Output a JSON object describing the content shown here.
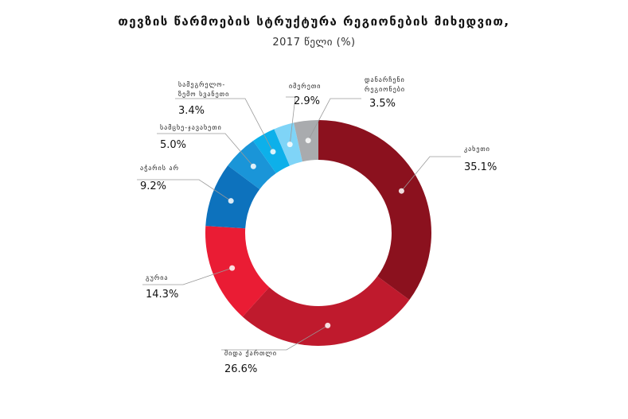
{
  "chart_data": {
    "type": "pie",
    "title": "თევზის წარმოების სტრუქტურა რეგიონების მიხედვით,",
    "subtitle": "2017 წელი (%)",
    "unit": "%",
    "donut": true,
    "slices": [
      {
        "label": [
          "კახეთი"
        ],
        "value": 35.1,
        "value_label": "35.1%",
        "color": "#8b111e"
      },
      {
        "label": [
          "შიდა ქართლი"
        ],
        "value": 26.6,
        "value_label": "26.6%",
        "color": "#bf1a2d"
      },
      {
        "label": [
          "გურია"
        ],
        "value": 14.3,
        "value_label": "14.3%",
        "color": "#ea1c34"
      },
      {
        "label": [
          "აჭარის არ"
        ],
        "value": 9.2,
        "value_label": "9.2%",
        "color": "#0d72bd"
      },
      {
        "label": [
          "სამცხე-ჯავახეთი"
        ],
        "value": 5.0,
        "value_label": "5.0%",
        "color": "#1a95d8"
      },
      {
        "label": [
          "სამეგრელო-",
          "ზემო სვანეთი"
        ],
        "value": 3.4,
        "value_label": "3.4%",
        "color": "#0db0ea"
      },
      {
        "label": [
          "იმერეთი"
        ],
        "value": 2.9,
        "value_label": "2.9%",
        "color": "#7fd4f7"
      },
      {
        "label": [
          "დანარჩენი",
          "რეგიონები"
        ],
        "value": 3.5,
        "value_label": "3.5%",
        "color": "#a9abae"
      }
    ]
  }
}
